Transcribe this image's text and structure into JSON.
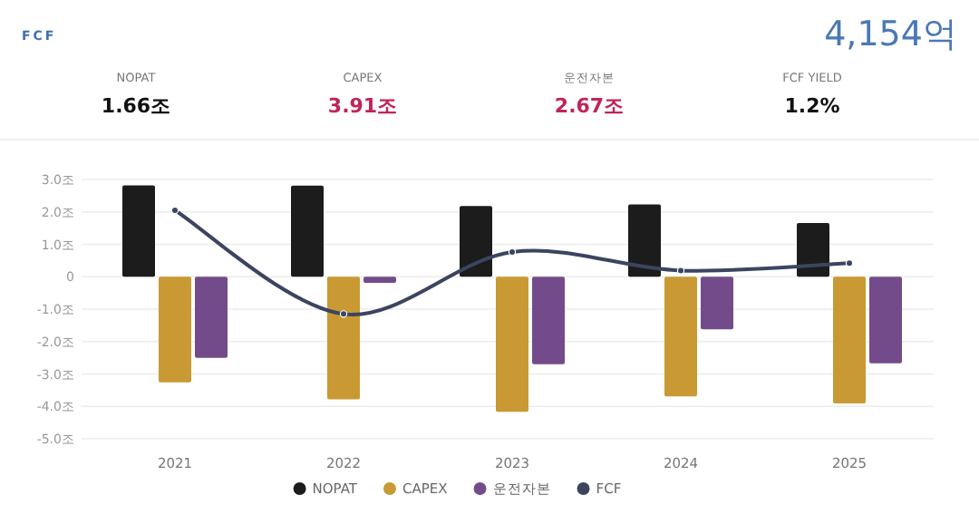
{
  "chart_data": {
    "type": "bar",
    "title": "FCF",
    "annotations": [
      "4,154억",
      "NOPAT",
      "1.66조",
      "CAPEX",
      "3.91조",
      "운전자본",
      "2.67조",
      "FCF YIELD",
      "1.2%"
    ],
    "categories": [
      "2021",
      "2022",
      "2023",
      "2024",
      "2025"
    ],
    "series": [
      {
        "name": "NOPAT",
        "color": "#1c1c1c",
        "values": [
          2.82,
          2.81,
          2.18,
          2.23,
          1.66
        ]
      },
      {
        "name": "CAPEX",
        "color": "#c99a33",
        "values": [
          -3.26,
          -3.78,
          -4.17,
          -3.69,
          -3.91
        ]
      },
      {
        "name": "운전자본",
        "color": "#744b8a",
        "values": [
          -2.5,
          -0.19,
          -2.7,
          -1.62,
          -2.67
        ]
      },
      {
        "name": "FCF",
        "type": "line",
        "color": "#3b4560",
        "values": [
          2.05,
          -1.15,
          0.76,
          0.19,
          0.42
        ]
      }
    ],
    "ylim": [
      -5,
      3
    ],
    "yticks": [
      {
        "value": 3,
        "label": "3.0조"
      },
      {
        "value": 2,
        "label": "2.0조"
      },
      {
        "value": 1,
        "label": "1.0조"
      },
      0,
      {
        "value": -1,
        "label": "-1.0조"
      },
      {
        "value": -2,
        "label": "-2.0조"
      },
      {
        "value": -3,
        "label": "-3.0조"
      },
      {
        "value": -4,
        "label": "-4.0조"
      },
      {
        "value": -5,
        "label": "-5.0조"
      }
    ],
    "grid": "y",
    "legend": "bottom",
    "marker": "circle",
    "line_style": "solid"
  }
}
